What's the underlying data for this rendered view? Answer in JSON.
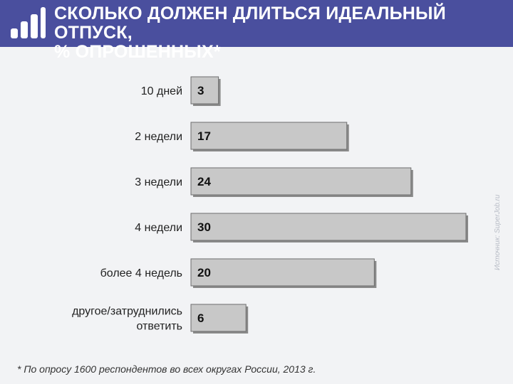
{
  "header": {
    "title_line1": "СКОЛЬКО ДОЛЖЕН ДЛИТЬСЯ ИДЕАЛЬНЫЙ ОТПУСК,",
    "title_line2": "% ОПРОШЕННЫХ*",
    "icon": "bar-chart-icon"
  },
  "footnote": "* По опросу 1600 респондентов во всех округах России, 2013 г.",
  "source_credit": "Источник: SuperJob.ru",
  "colors": {
    "header_bg": "#4a4f9e",
    "bar_fill": "#c8c8c8",
    "bar_shadow": "#8a8a8a",
    "page_bg": "#f2f3f5"
  },
  "chart_data": {
    "type": "bar",
    "orientation": "horizontal",
    "categories": [
      [
        "10 дней"
      ],
      [
        "2 недели"
      ],
      [
        "3 недели"
      ],
      [
        "4 недели"
      ],
      [
        "более 4 недель"
      ],
      [
        "другое/затруднились",
        "ответить"
      ]
    ],
    "values": [
      3,
      17,
      24,
      30,
      20,
      6
    ],
    "value_labels": [
      "3",
      "17",
      "24",
      "30",
      "20",
      "6"
    ],
    "xlim": [
      0,
      30
    ],
    "grid": false,
    "legend": "none"
  }
}
